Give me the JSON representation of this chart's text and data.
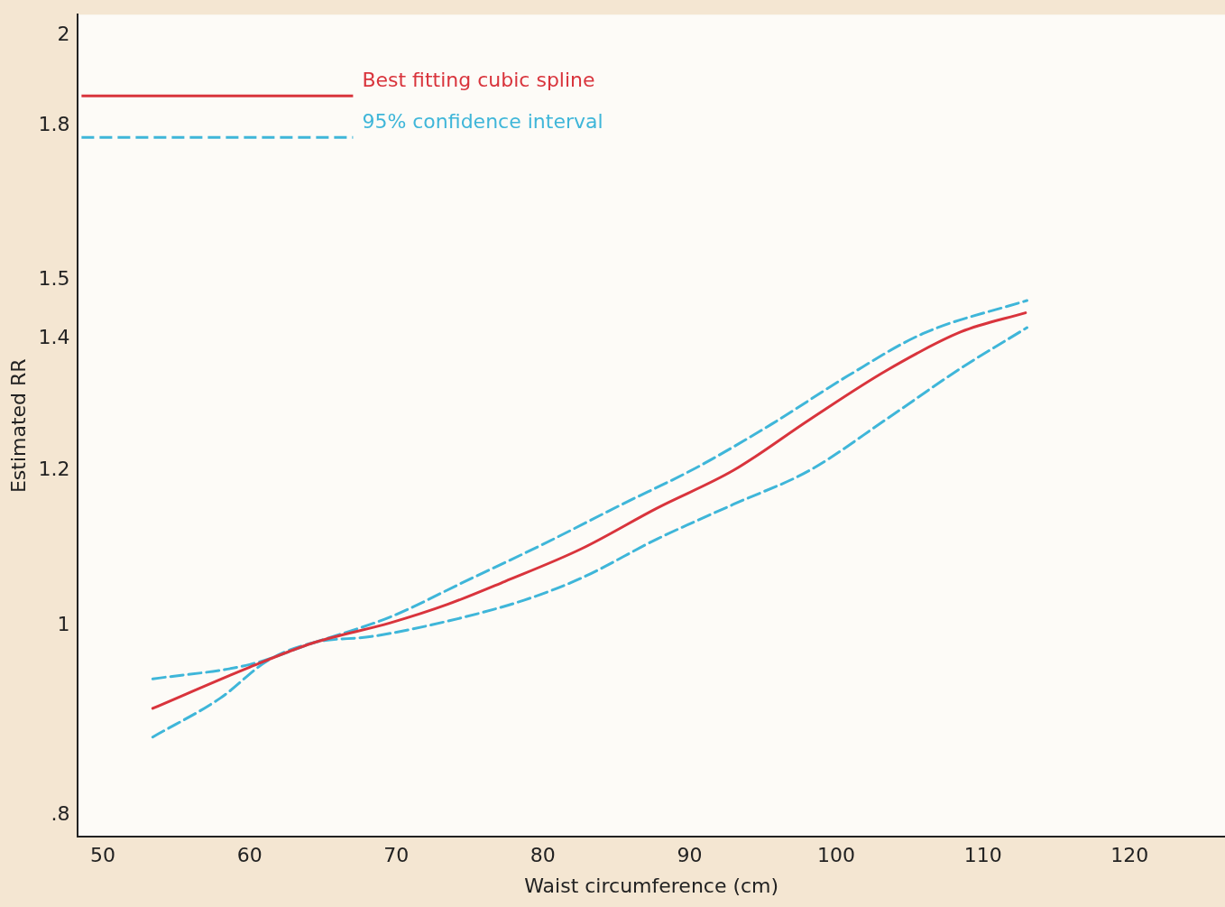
{
  "chart_data": {
    "type": "line",
    "xlabel": "Waist circumference (cm)",
    "ylabel": "Estimated RR",
    "xlim": [
      48.3,
      126.5
    ],
    "xticks": [
      50,
      60,
      70,
      80,
      90,
      100,
      110,
      120
    ],
    "ylim": [
      0.78,
      2.05
    ],
    "yticks": [
      {
        "value": 0.8,
        "label": ".8"
      },
      1,
      1.2,
      1.4,
      1.5,
      1.8,
      2
    ],
    "log": "y",
    "grid": false,
    "legend": "top left",
    "marker": "none",
    "series": [
      {
        "name": "Best fitting cubic spline",
        "color": "#d9343c",
        "line_style": "solid",
        "x": [
          53.4,
          60,
          64.4,
          69.6,
          73.5,
          77.4,
          82.6,
          87.8,
          93,
          98.2,
          103.4,
          108.5,
          112.9
        ],
        "values": [
          0.907,
          0.952,
          0.98,
          1.003,
          1.025,
          1.053,
          1.094,
          1.148,
          1.2,
          1.274,
          1.349,
          1.412,
          1.444
        ]
      },
      {
        "name": "95% confidence interval",
        "color": "#3fb6d9",
        "line_style": "dashed",
        "x": [
          53.4,
          60,
          64.4,
          69.6,
          74.8,
          80,
          85.2,
          90.4,
          95.6,
          100.8,
          105.9,
          113
        ],
        "values": [
          0.939,
          0.955,
          0.98,
          1.01,
          1.054,
          1.1,
          1.151,
          1.203,
          1.267,
          1.341,
          1.409,
          1.465
        ]
      },
      {
        "color": "#3fb6d9",
        "line_style": "dashed",
        "x": [
          53.4,
          58,
          61.3,
          64.4,
          68.3,
          73.5,
          78.7,
          82.6,
          87.8,
          93,
          98.2,
          103.4,
          108.5,
          113
        ],
        "values": [
          0.877,
          0.918,
          0.96,
          0.98,
          0.987,
          1.005,
          1.03,
          1.057,
          1.107,
          1.153,
          1.2,
          1.274,
          1.353,
          1.419
        ]
      }
    ]
  }
}
